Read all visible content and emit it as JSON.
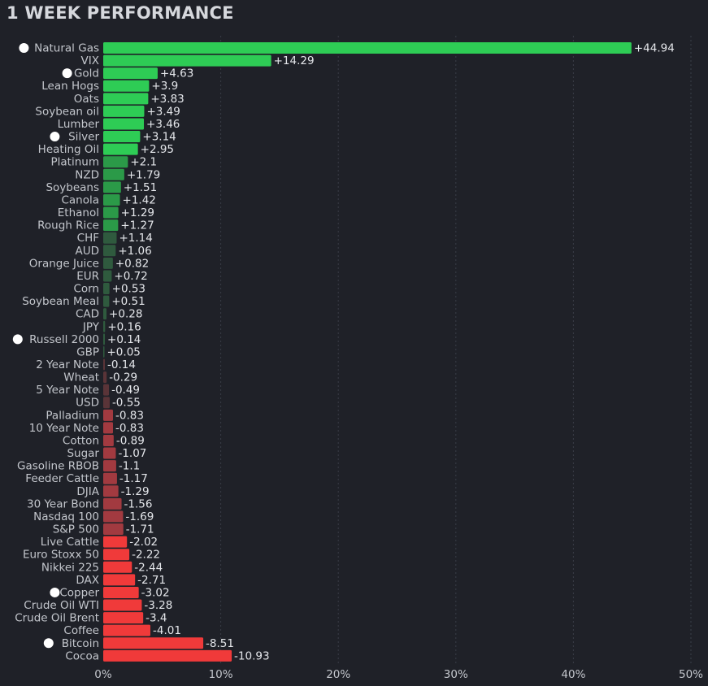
{
  "chart_data": {
    "type": "bar",
    "orientation": "horizontal",
    "title": "1 WEEK PERFORMANCE",
    "xlabel": "",
    "ylabel": "",
    "xlim": [
      0,
      50
    ],
    "x_ticks": [
      "0%",
      "10%",
      "20%",
      "30%",
      "40%",
      "50%"
    ],
    "categories": [
      "Natural Gas",
      "VIX",
      "Gold",
      "Lean Hogs",
      "Oats",
      "Soybean oil",
      "Lumber",
      "Silver",
      "Heating Oil",
      "Platinum",
      "NZD",
      "Soybeans",
      "Canola",
      "Ethanol",
      "Rough Rice",
      "CHF",
      "AUD",
      "Orange Juice",
      "EUR",
      "Corn",
      "Soybean Meal",
      "CAD",
      "JPY",
      "Russell 2000",
      "GBP",
      "2 Year Note",
      "Wheat",
      "5 Year Note",
      "USD",
      "Palladium",
      "10 Year Note",
      "Cotton",
      "Sugar",
      "Gasoline RBOB",
      "Feeder Cattle",
      "DJIA",
      "30 Year Bond",
      "Nasdaq 100",
      "S&P 500",
      "Live Cattle",
      "Euro Stoxx 50",
      "Nikkei 225",
      "DAX",
      "Copper",
      "Crude Oil WTI",
      "Crude Oil Brent",
      "Coffee",
      "Bitcoin",
      "Cocoa"
    ],
    "values": [
      44.94,
      14.29,
      4.63,
      3.9,
      3.83,
      3.49,
      3.46,
      3.14,
      2.95,
      2.1,
      1.79,
      1.51,
      1.42,
      1.29,
      1.27,
      1.14,
      1.06,
      0.82,
      0.72,
      0.53,
      0.51,
      0.28,
      0.16,
      0.14,
      0.05,
      -0.14,
      -0.29,
      -0.49,
      -0.55,
      -0.83,
      -0.83,
      -0.89,
      -1.07,
      -1.1,
      -1.17,
      -1.29,
      -1.56,
      -1.69,
      -1.71,
      -2.02,
      -2.22,
      -2.44,
      -2.71,
      -3.02,
      -3.28,
      -3.4,
      -4.01,
      -8.51,
      -10.93
    ],
    "value_labels": [
      "+44.94",
      "+14.29",
      "+4.63",
      "+3.9",
      "+3.83",
      "+3.49",
      "+3.46",
      "+3.14",
      "+2.95",
      "+2.1",
      "+1.79",
      "+1.51",
      "+1.42",
      "+1.29",
      "+1.27",
      "+1.14",
      "+1.06",
      "+0.82",
      "+0.72",
      "+0.53",
      "+0.51",
      "+0.28",
      "+0.16",
      "+0.14",
      "+0.05",
      "-0.14",
      "-0.29",
      "-0.49",
      "-0.55",
      "-0.83",
      "-0.83",
      "-0.89",
      "-1.07",
      "-1.1",
      "-1.17",
      "-1.29",
      "-1.56",
      "-1.69",
      "-1.71",
      "-2.02",
      "-2.22",
      "-2.44",
      "-2.71",
      "-3.02",
      "-3.28",
      "-3.4",
      "-4.01",
      "-8.51",
      "-10.93"
    ],
    "marked": [
      "Natural Gas",
      "Gold",
      "Silver",
      "Russell 2000",
      "Copper",
      "Bitcoin"
    ],
    "bar_value_mode": "absolute",
    "grid": true,
    "colors": {
      "positive_strong": "#2ecc55",
      "positive_medium": "#2b9a48",
      "positive_weak": "#2f5a3e",
      "negative_weak": "#5a3438",
      "negative_medium": "#a23a40",
      "negative_strong": "#f03a3a",
      "background": "#1f2128"
    }
  }
}
